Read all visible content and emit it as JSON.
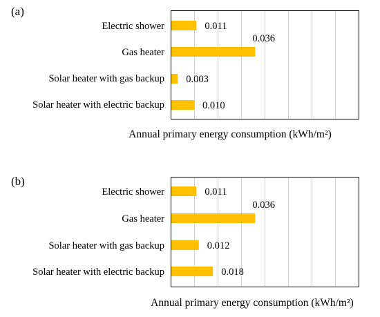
{
  "chart_data": [
    {
      "type": "bar",
      "orientation": "horizontal",
      "panel_label": "(a)",
      "categories": [
        "Electric shower",
        "Gas heater",
        "Solar heater with gas backup",
        "Solar heater with electric backup"
      ],
      "values": [
        0.011,
        0.036,
        0.003,
        0.01
      ],
      "value_labels": [
        "0.011",
        "0.036",
        "0.003",
        "0.010"
      ],
      "xlabel": "Annual primary energy consumption (kWh/m²)",
      "xlim": [
        0,
        0.08
      ],
      "grid": true,
      "bar_color": "#ffc000"
    },
    {
      "type": "bar",
      "orientation": "horizontal",
      "panel_label": "(b)",
      "categories": [
        "Electric shower",
        "Gas heater",
        "Solar heater with gas backup",
        "Solar heater with electric backup"
      ],
      "values": [
        0.011,
        0.036,
        0.012,
        0.018
      ],
      "value_labels": [
        "0.011",
        "0.036",
        "0.012",
        "0.018"
      ],
      "xlabel": "Annual primary energy consumption (kWh/m²)",
      "xlim": [
        0,
        0.08
      ],
      "grid": true,
      "bar_color": "#ffc000"
    }
  ]
}
